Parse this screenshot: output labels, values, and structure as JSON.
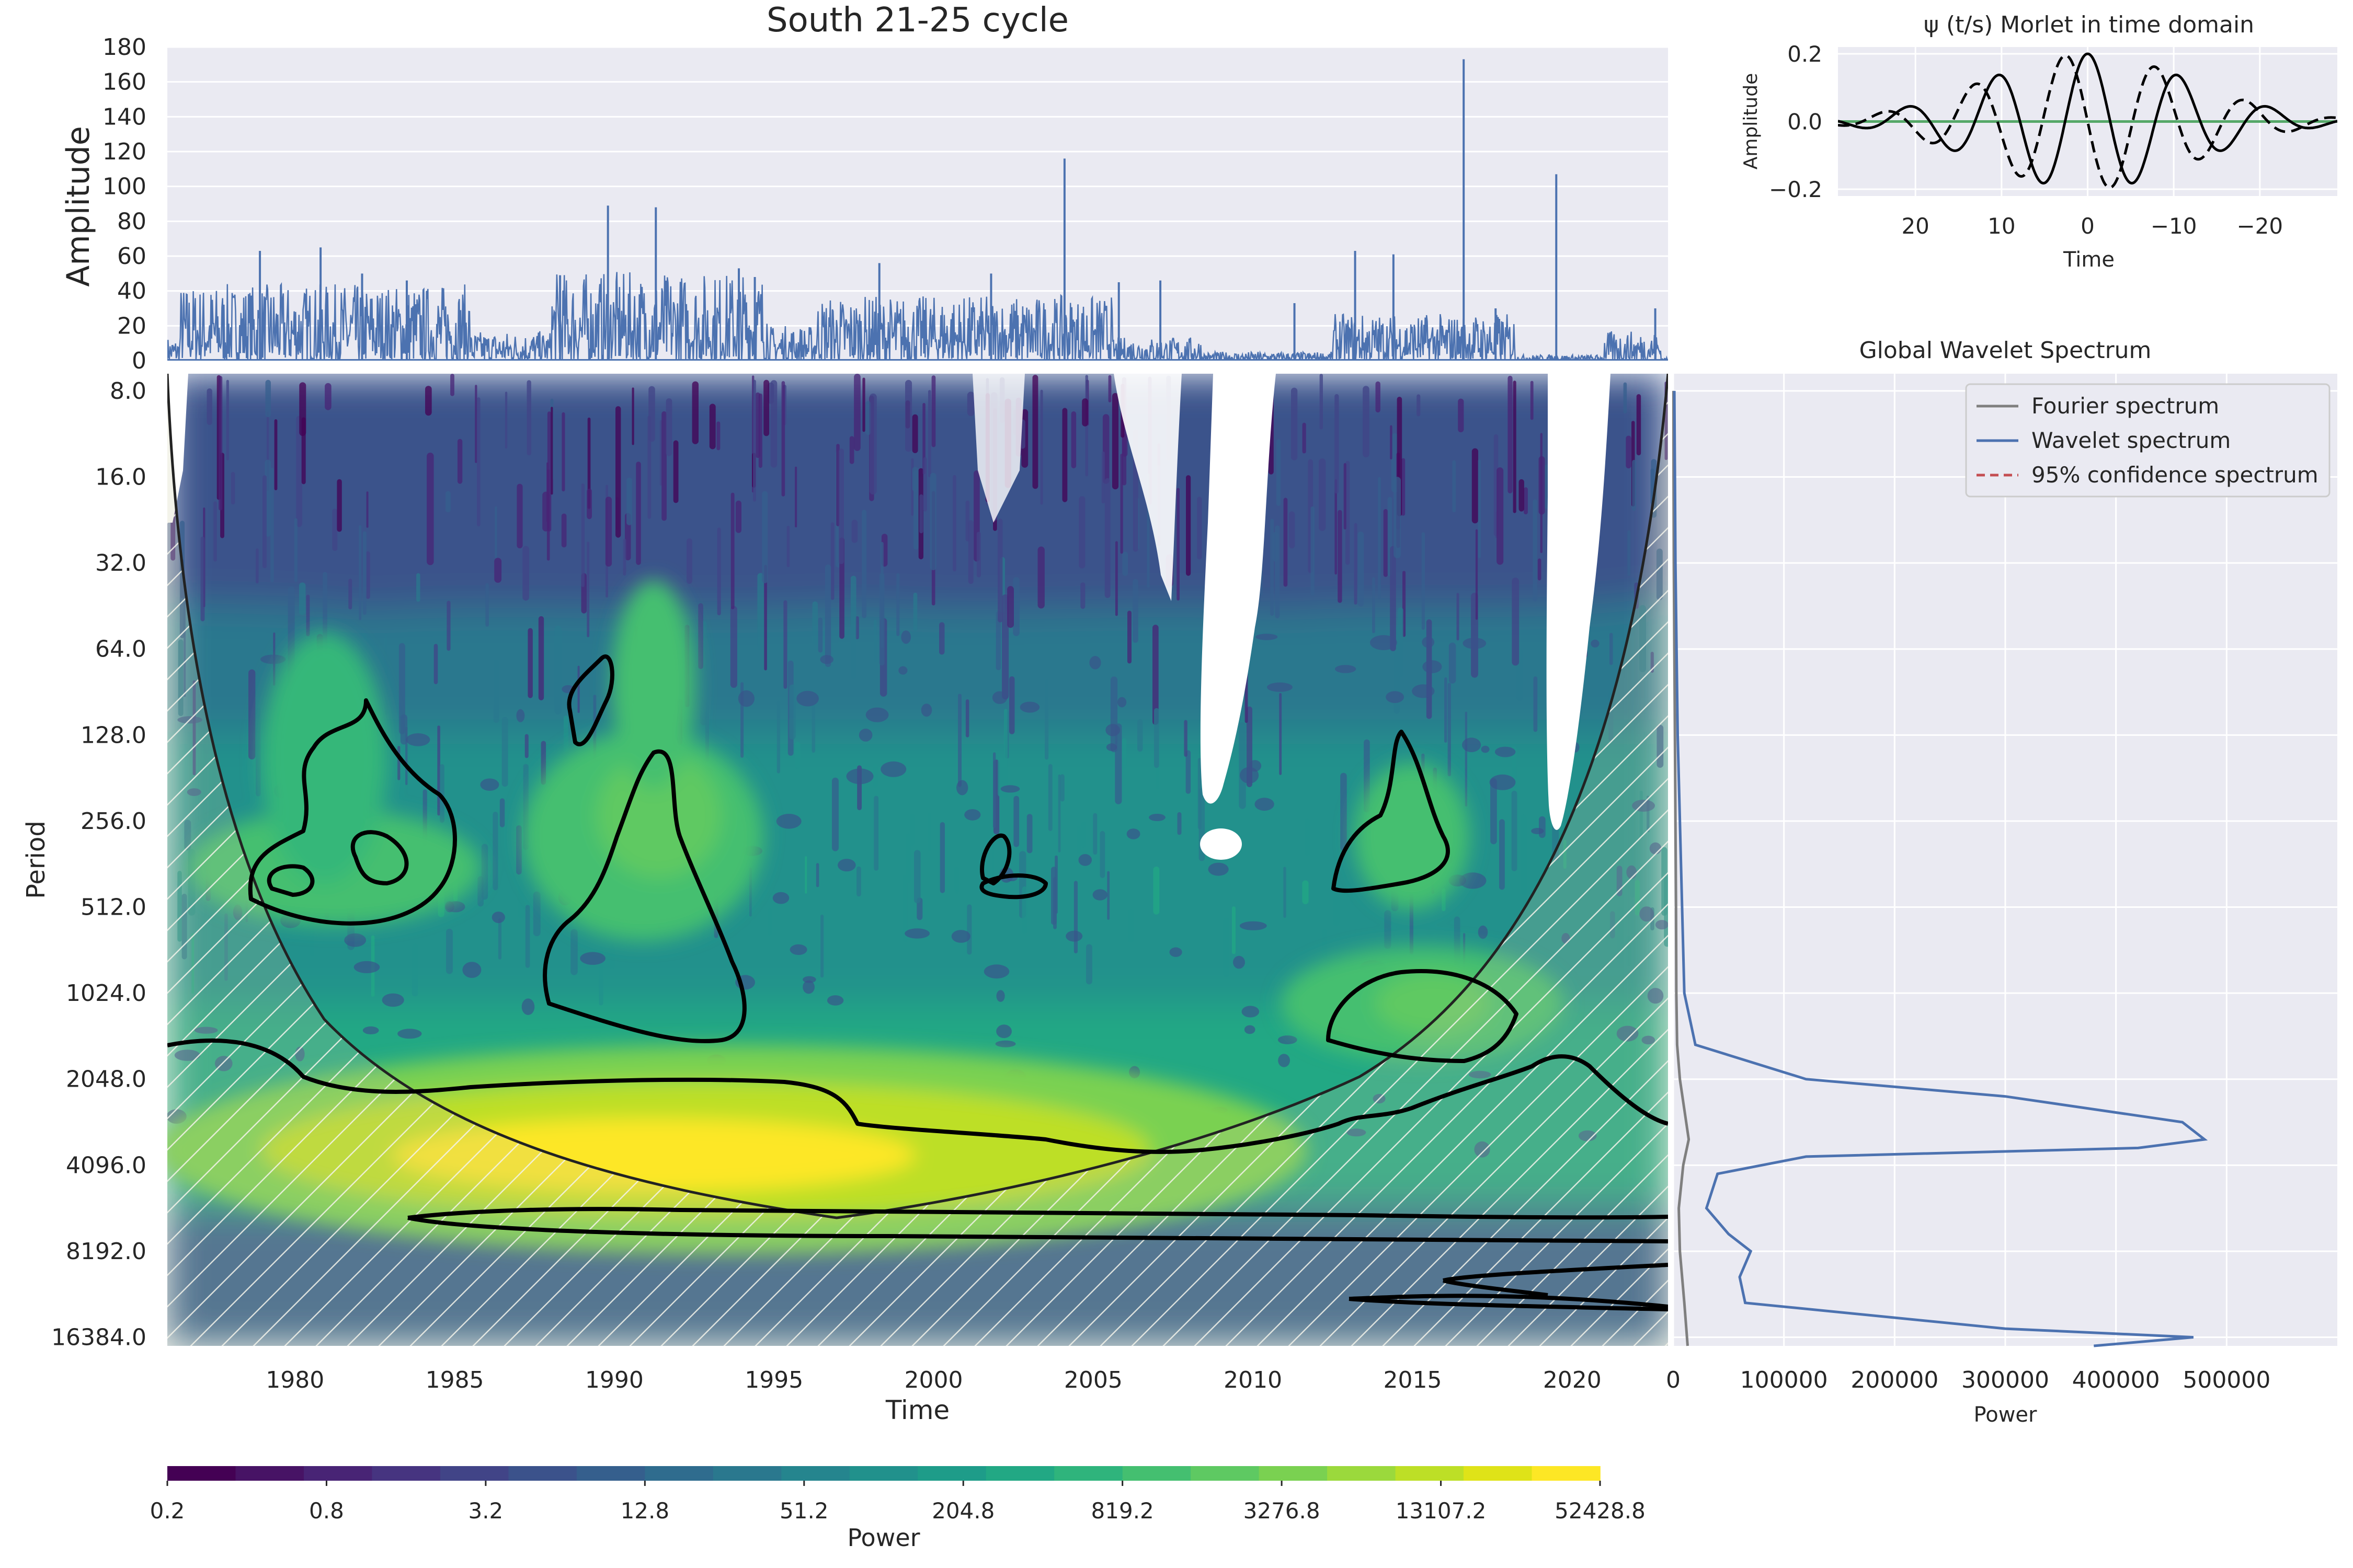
{
  "chart_data": [
    {
      "id": "amplitude",
      "type": "line",
      "title": "South 21-25 cycle",
      "ylabel": "Amplitude",
      "xlim": [
        1976,
        2023
      ],
      "ylim": [
        0,
        180
      ],
      "yticks": [
        0,
        20,
        40,
        60,
        80,
        100,
        120,
        140,
        160,
        180
      ],
      "peaks": [
        {
          "x": 1978.9,
          "y": 63
        },
        {
          "x": 1980.8,
          "y": 65
        },
        {
          "x": 1982.1,
          "y": 50
        },
        {
          "x": 1983.5,
          "y": 46
        },
        {
          "x": 1988.3,
          "y": 49
        },
        {
          "x": 1989.8,
          "y": 89
        },
        {
          "x": 1991.3,
          "y": 88
        },
        {
          "x": 1993.9,
          "y": 53
        },
        {
          "x": 1994.4,
          "y": 48
        },
        {
          "x": 1998.3,
          "y": 56
        },
        {
          "x": 2001.8,
          "y": 50
        },
        {
          "x": 2004.1,
          "y": 116
        },
        {
          "x": 2005.8,
          "y": 45
        },
        {
          "x": 2007.1,
          "y": 46
        },
        {
          "x": 2011.3,
          "y": 33
        },
        {
          "x": 2013.2,
          "y": 63
        },
        {
          "x": 2014.4,
          "y": 61
        },
        {
          "x": 2016.6,
          "y": 173
        },
        {
          "x": 2017.6,
          "y": 30
        },
        {
          "x": 2019.5,
          "y": 107
        },
        {
          "x": 2022.6,
          "y": 30
        }
      ]
    },
    {
      "id": "morlet",
      "type": "line",
      "title": "ψ (t/s) Morlet in time domain",
      "xlabel": "Time",
      "ylabel": "Amplitude",
      "xlim": [
        29,
        -29
      ],
      "ylim": [
        -0.22,
        0.22
      ],
      "xticks": [
        20,
        10,
        0,
        -10,
        -20
      ],
      "yticks": [
        0.2,
        0.0,
        -0.2
      ],
      "ytick_labels": [
        "0.2",
        "0.0",
        "−0.2"
      ],
      "xtick_labels": [
        "20",
        "10",
        "0",
        "−10",
        "−20"
      ],
      "series": [
        {
          "name": "real part",
          "color": "#000000",
          "style": "solid"
        },
        {
          "name": "imaginary part",
          "color": "#000000",
          "style": "dashed"
        },
        {
          "name": "zero line",
          "color": "#55a868",
          "style": "solid"
        }
      ]
    },
    {
      "id": "wavelet-power",
      "type": "heatmap",
      "xlabel": "Time",
      "ylabel": "Period",
      "xlim": [
        1976,
        2023
      ],
      "xticks": [
        1980,
        1985,
        1990,
        1995,
        2000,
        2005,
        2010,
        2015,
        2020
      ],
      "yticks": [
        "8.0",
        "16.0",
        "32.0",
        "64.0",
        "128.0",
        "256.0",
        "512.0",
        "1024.0",
        "2048.0",
        "4096.0",
        "8192.0",
        "16384.0"
      ],
      "ylim_log2": [
        2.8,
        14.1
      ],
      "regions": [
        {
          "x": [
            1976,
            1984
          ],
          "period": [
            4.2,
            7.0
          ],
          "power": 2000
        },
        {
          "x": [
            1988,
            1992.5
          ],
          "period": [
            7.0,
            9.8
          ],
          "power": 1500
        },
        {
          "x": [
            1984,
            2008
          ],
          "period": [
            11.0,
            12.3
          ],
          "power": 40000
        },
        {
          "x": [
            2013,
            2020
          ],
          "period": [
            9.3,
            10.3
          ],
          "power": 1500
        }
      ]
    },
    {
      "id": "global-spectrum",
      "type": "line",
      "title": "Global Wavelet Spectrum",
      "xlabel": "Power",
      "xlim": [
        0,
        600000
      ],
      "xticks": [
        0,
        100000,
        200000,
        300000,
        400000,
        500000
      ],
      "legend_position": "upper-right",
      "series": [
        {
          "name": "Fourier spectrum",
          "color": "#7f7f7f",
          "style": "solid",
          "points": [
            [
              200,
              3.0
            ],
            [
              300,
              4.0
            ],
            [
              500,
              5.0
            ],
            [
              1000,
              6.0
            ],
            [
              1500,
              7.0
            ],
            [
              2000,
              8.0
            ],
            [
              2500,
              9.0
            ],
            [
              2800,
              10.0
            ],
            [
              3500,
              10.6
            ],
            [
              6000,
              11.0
            ],
            [
              14000,
              11.7
            ],
            [
              9000,
              12.0
            ],
            [
              5000,
              12.5
            ],
            [
              6000,
              13.0
            ],
            [
              10000,
              13.6
            ],
            [
              13000,
              14.1
            ]
          ]
        },
        {
          "name": "Wavelet spectrum",
          "color": "#4c72b0",
          "style": "solid",
          "points": [
            [
              1000,
              3.0
            ],
            [
              1500,
              4.0
            ],
            [
              2000,
              5.0
            ],
            [
              3000,
              6.0
            ],
            [
              4000,
              7.0
            ],
            [
              6000,
              8.0
            ],
            [
              8000,
              9.0
            ],
            [
              10000,
              10.0
            ],
            [
              20000,
              10.6
            ],
            [
              120000,
              11.0
            ],
            [
              300000,
              11.2
            ],
            [
              460000,
              11.5
            ],
            [
              480000,
              11.7
            ],
            [
              420000,
              11.8
            ],
            [
              120000,
              11.9
            ],
            [
              40000,
              12.1
            ],
            [
              30000,
              12.5
            ],
            [
              50000,
              12.8
            ],
            [
              70000,
              13.0
            ],
            [
              60000,
              13.3
            ],
            [
              65000,
              13.6
            ],
            [
              300000,
              13.9
            ],
            [
              470000,
              14.0
            ],
            [
              380000,
              14.1
            ]
          ]
        },
        {
          "name": "95% confidence spectrum",
          "color": "#c44e52",
          "style": "dashed",
          "points": []
        }
      ]
    },
    {
      "id": "colorbar",
      "type": "heatmap",
      "label": "Power",
      "tick_labels": [
        "0.2",
        "0.8",
        "3.2",
        "12.8",
        "51.2",
        "204.8",
        "819.2",
        "3276.8",
        "13107.2",
        "52428.8"
      ],
      "colors": [
        "#440154",
        "#471365",
        "#482475",
        "#463480",
        "#414487",
        "#3b528b",
        "#355f8d",
        "#2f6c8e",
        "#2a788e",
        "#25858e",
        "#21918c",
        "#1e9c89",
        "#22a884",
        "#2fb47c",
        "#44bf70",
        "#5ec962",
        "#7ad151",
        "#9bd93c",
        "#bddf26",
        "#dfe318",
        "#fde725"
      ]
    }
  ],
  "colors": {
    "axes_bg": "#eaeaf2",
    "grid": "#ffffff",
    "signal": "#4c72b0",
    "hatch": "#ffffff"
  }
}
